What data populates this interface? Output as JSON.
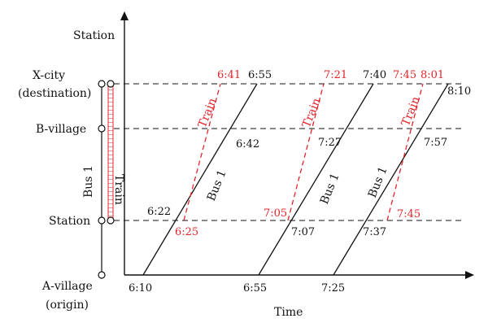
{
  "axes": {
    "y_title": "Station",
    "x_title": "Time"
  },
  "stations": {
    "x_city_line1": "X-city",
    "x_city_line2": "(destination)",
    "b_village": "B-village",
    "station": "Station",
    "a_village_line1": "A-village",
    "a_village_line2": "(origin)"
  },
  "route_labels": {
    "bus": "Bus 1",
    "train": "Train"
  },
  "line_labels": {
    "bus": "Bus 1",
    "train": "Train"
  },
  "times": {
    "bus1_start": "6:10",
    "bus1_station": "6:22",
    "bus1_b": "6:42",
    "bus1_x": "6:55",
    "bus2_start": "6:55",
    "bus2_station": "7:07",
    "bus2_b": "7:27",
    "bus2_x": "7:40",
    "bus3_start": "7:25",
    "bus3_station": "7:37",
    "bus3_b": "7:57",
    "bus3_x": "8:10",
    "train1_dep": "6:25",
    "train1_arr": "6:41",
    "train2_dep": "7:05",
    "train2_arr": "7:21",
    "train3_dep": "7:45",
    "train3_arr": "8:01"
  },
  "colors": {
    "bus": "#111111",
    "train": "#e3242b"
  }
}
